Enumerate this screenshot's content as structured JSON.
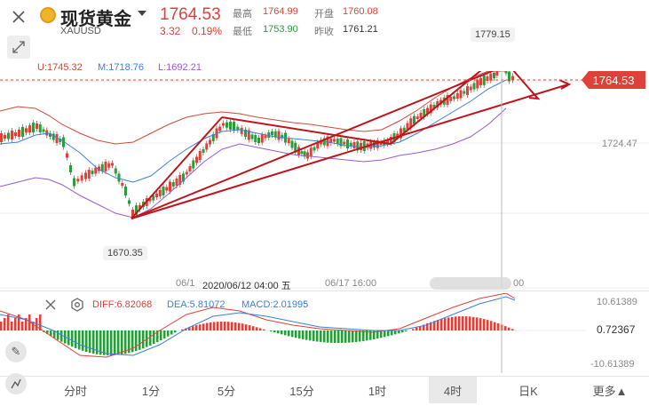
{
  "header": {
    "title": "现货黄金",
    "symbol": "XAUUSD",
    "price": "1764.53",
    "change": "3.32",
    "change_pct": "0.19%",
    "high_label": "最高",
    "high": "1764.99",
    "open_label": "开盘",
    "open": "1760.08",
    "low_label": "最低",
    "low": "1753.90",
    "prev_label": "昨收",
    "prev": "1761.21"
  },
  "boll": {
    "u": "U:1745.32",
    "m": "M:1718.76",
    "l": "L:1692.21"
  },
  "main_chart": {
    "price_tag": "1764.53",
    "high_callout": "1779.15",
    "low_callout": "1670.35",
    "axis_mid": "1724.47",
    "x_labels": [
      "06/1",
      "2020/06/12 04:00 五",
      "06/17 16:00",
      "00"
    ]
  },
  "macd": {
    "diff": "DIFF:6.82068",
    "dea": "DEA:5.81072",
    "macd": "MACD:2.01995",
    "axis_top": "10.61389",
    "axis_mid": "0.72367",
    "axis_bot": "-10.61389"
  },
  "tabs": [
    "分时",
    "1分",
    "5分",
    "15分",
    "1时",
    "4时",
    "日K",
    "更多▲"
  ],
  "active_tab": "4时",
  "colors": {
    "up": "#e0403a",
    "down": "#2a9d3a",
    "upper": "#d04a3a",
    "mid": "#3d7fd9",
    "lower": "#9a5ad0",
    "trend": "#c0141b"
  }
}
